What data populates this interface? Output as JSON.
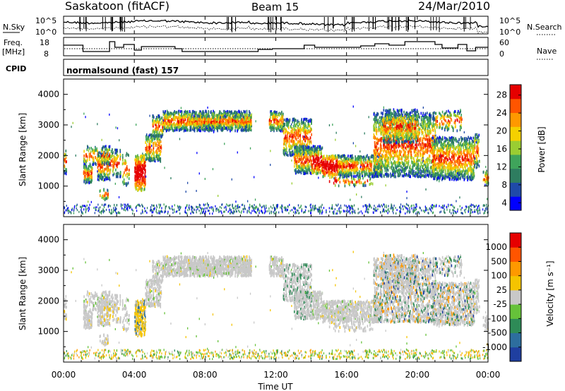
{
  "header": {
    "title": "Saskatoon (fitACF)",
    "beam": "Beam 15",
    "date": "24/Mar/2010"
  },
  "noise_panel": {
    "left_label": "N.Sky",
    "left_ticks": [
      "10^5",
      "10^0"
    ],
    "right_ticks": [
      "10^5",
      "10^0"
    ],
    "right_label": "N.Search"
  },
  "freq_panel": {
    "left_label_line1": "Freq.",
    "left_label_line2": "[MHz]",
    "left_ticks": [
      "18",
      "8"
    ],
    "right_ticks": [
      "60",
      "0"
    ],
    "right_label": "Nave"
  },
  "cpid_panel": {
    "label": "CPID",
    "mode": "normalsound (fast) 157"
  },
  "chart_data": [
    {
      "type": "heatmap",
      "name": "power",
      "ylabel": "Slant Range [km]",
      "y_ticks": [
        "4000",
        "3000",
        "2000",
        "1000"
      ],
      "ylim": [
        0,
        4500
      ],
      "colorbar_label": "Power [dB]",
      "colorbar_ticks": [
        "28",
        "24",
        "20",
        "16",
        "12",
        "8",
        "4"
      ],
      "colors": [
        "#0000ff",
        "#1f4aa8",
        "#2e7d60",
        "#3fa45b",
        "#9acd32",
        "#f5d000",
        "#ff9900",
        "#ff5500",
        "#e60000"
      ]
    },
    {
      "type": "heatmap",
      "name": "velocity",
      "ylabel": "Slant Range [km]",
      "y_ticks": [
        "4000",
        "3000",
        "2000",
        "1000"
      ],
      "ylim": [
        0,
        4500
      ],
      "colorbar_label": "Velocity [m s⁻¹]",
      "colorbar_ticks": [
        "1000",
        "500",
        "100",
        "25",
        "-25",
        "-100",
        "-500",
        "-1000"
      ],
      "colors": [
        "#1f3fa0",
        "#2d6e9e",
        "#2e8b57",
        "#66c23a",
        "#c8c8c8",
        "#f5c400",
        "#ff9900",
        "#ff5500",
        "#e60000"
      ],
      "gray_band": "#c8c8c8"
    }
  ],
  "x_axis": {
    "ticks": [
      "00:00",
      "04:00",
      "08:00",
      "12:00",
      "16:00",
      "20:00",
      "00:00"
    ],
    "label": "Time UT"
  }
}
